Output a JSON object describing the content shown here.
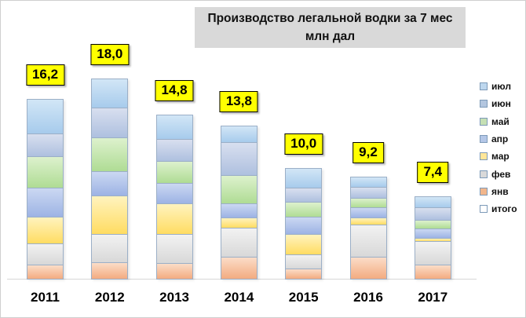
{
  "title": {
    "line1": "Производство легальной водки за 7 мес",
    "line2": "млн дал"
  },
  "colors": {
    "value_label_bg": "#FFFF00",
    "value_label_border": "#000000",
    "title_bg": "#D9D9D9",
    "axis_line": "#D6D6D6",
    "segment_border": "#9BAFC7",
    "page_border": "#CFCFCF"
  },
  "chart_data": {
    "type": "bar",
    "stacked": true,
    "title": "Производство легальной водки за 7 мес млн дал",
    "units": "млн дал",
    "categories": [
      "2011",
      "2012",
      "2013",
      "2014",
      "2015",
      "2016",
      "2017"
    ],
    "totals": [
      16.2,
      18.0,
      14.8,
      13.8,
      10.0,
      9.2,
      7.4
    ],
    "total_labels": [
      "16,2",
      "18,0",
      "14,8",
      "13,8",
      "10,0",
      "9,2",
      "7,4"
    ],
    "series": [
      {
        "name": "янв",
        "key": "jan",
        "swatch": "#F5BE94",
        "fill_top": "#FBDDC8",
        "fill_bottom": "#F3AB80",
        "values": [
          1.3,
          1.5,
          1.4,
          2.0,
          0.9,
          2.0,
          1.3
        ]
      },
      {
        "name": "фев",
        "key": "feb",
        "swatch": "#D9D9D9",
        "fill_top": "#F2F2F2",
        "fill_bottom": "#D8D8D8",
        "values": [
          1.9,
          2.5,
          2.6,
          2.6,
          1.3,
          2.9,
          2.1
        ]
      },
      {
        "name": "мар",
        "key": "mar",
        "swatch": "#FFE699",
        "fill_top": "#FFF3BE",
        "fill_bottom": "#FFDC62",
        "values": [
          2.4,
          3.5,
          2.8,
          0.9,
          1.8,
          0.6,
          0.3
        ]
      },
      {
        "name": "апр",
        "key": "apr",
        "swatch": "#B4C7E7",
        "fill_top": "#CBD8F2",
        "fill_bottom": "#9DB3E4",
        "values": [
          2.6,
          2.2,
          1.8,
          1.3,
          1.6,
          0.9,
          0.8
        ]
      },
      {
        "name": "май",
        "key": "may",
        "swatch": "#C5E0B4",
        "fill_top": "#DDF1CD",
        "fill_bottom": "#AFDC94",
        "values": [
          2.8,
          3.0,
          2.0,
          2.5,
          1.3,
          0.9,
          0.8
        ]
      },
      {
        "name": "июн",
        "key": "jun",
        "swatch": "#B3C6DF",
        "fill_top": "#D8DFEF",
        "fill_bottom": "#AEC0DF",
        "values": [
          2.1,
          2.7,
          2.0,
          3.0,
          1.3,
          1.0,
          1.1
        ]
      },
      {
        "name": "июл",
        "key": "jul",
        "swatch": "#BDD7EE",
        "fill_top": "#D2E6F6",
        "fill_bottom": "#A7CBEC",
        "values": [
          3.1,
          2.6,
          2.2,
          1.5,
          1.8,
          0.9,
          1.0
        ]
      }
    ],
    "legend": [
      {
        "label": "июл",
        "key": "jul",
        "swatch": "#BDD7EE"
      },
      {
        "label": "июн",
        "key": "jun",
        "swatch": "#B3C6DF"
      },
      {
        "label": "май",
        "key": "may",
        "swatch": "#C5E0B4"
      },
      {
        "label": "апр",
        "key": "apr",
        "swatch": "#B4C7E7"
      },
      {
        "label": "мар",
        "key": "mar",
        "swatch": "#FFE699"
      },
      {
        "label": "фев",
        "key": "feb",
        "swatch": "#D9D9D9"
      },
      {
        "label": "янв",
        "key": "jan",
        "swatch": "#F2B68C"
      },
      {
        "label": "итого",
        "key": "total",
        "swatch": "#FFFFFF"
      }
    ],
    "legend_position": "right",
    "ylim": [
      0,
      18
    ],
    "grid": false
  }
}
